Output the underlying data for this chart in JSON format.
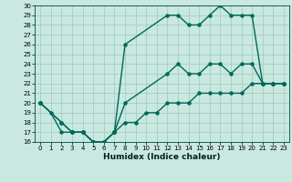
{
  "xlabel": "Humidex (Indice chaleur)",
  "bg_color": "#c8e8e0",
  "grid_color": "#9fc8c0",
  "line_color": "#006858",
  "ylim": [
    16,
    30
  ],
  "xlim": [
    -0.5,
    23.5
  ],
  "yticks": [
    16,
    17,
    18,
    19,
    20,
    21,
    22,
    23,
    24,
    25,
    26,
    27,
    28,
    29,
    30
  ],
  "xticks": [
    0,
    1,
    2,
    3,
    4,
    5,
    6,
    7,
    8,
    9,
    10,
    11,
    12,
    13,
    14,
    15,
    16,
    17,
    18,
    19,
    20,
    21,
    22,
    23
  ],
  "line1_x": [
    0,
    1,
    2,
    3,
    4,
    5,
    6,
    7,
    8,
    12,
    13,
    14,
    15,
    16,
    17,
    18,
    19,
    20,
    21,
    22,
    23
  ],
  "line1_y": [
    20,
    19,
    17,
    17,
    17,
    16,
    16,
    17,
    26,
    29,
    29,
    28,
    28,
    29,
    30,
    29,
    29,
    29,
    22,
    22,
    22
  ],
  "line2_x": [
    0,
    2,
    3,
    4,
    5,
    6,
    7,
    8,
    12,
    13,
    14,
    15,
    16,
    17,
    18,
    19,
    20,
    21,
    22,
    23
  ],
  "line2_y": [
    20,
    18,
    17,
    17,
    16,
    16,
    17,
    20,
    23,
    24,
    23,
    23,
    24,
    24,
    23,
    24,
    24,
    22,
    22,
    22
  ],
  "line3_x": [
    0,
    2,
    3,
    4,
    5,
    6,
    7,
    8,
    9,
    10,
    11,
    12,
    13,
    14,
    15,
    16,
    17,
    18,
    19,
    20,
    21,
    22,
    23
  ],
  "line3_y": [
    20,
    18,
    17,
    17,
    16,
    16,
    17,
    18,
    18,
    19,
    19,
    20,
    20,
    20,
    21,
    21,
    21,
    21,
    21,
    22,
    22,
    22,
    22
  ],
  "marker_size": 2.2,
  "line_width": 1.0,
  "tick_fontsize": 5.0,
  "label_fontsize": 6.5,
  "fig_w": 3.2,
  "fig_h": 2.0,
  "dpi": 100
}
